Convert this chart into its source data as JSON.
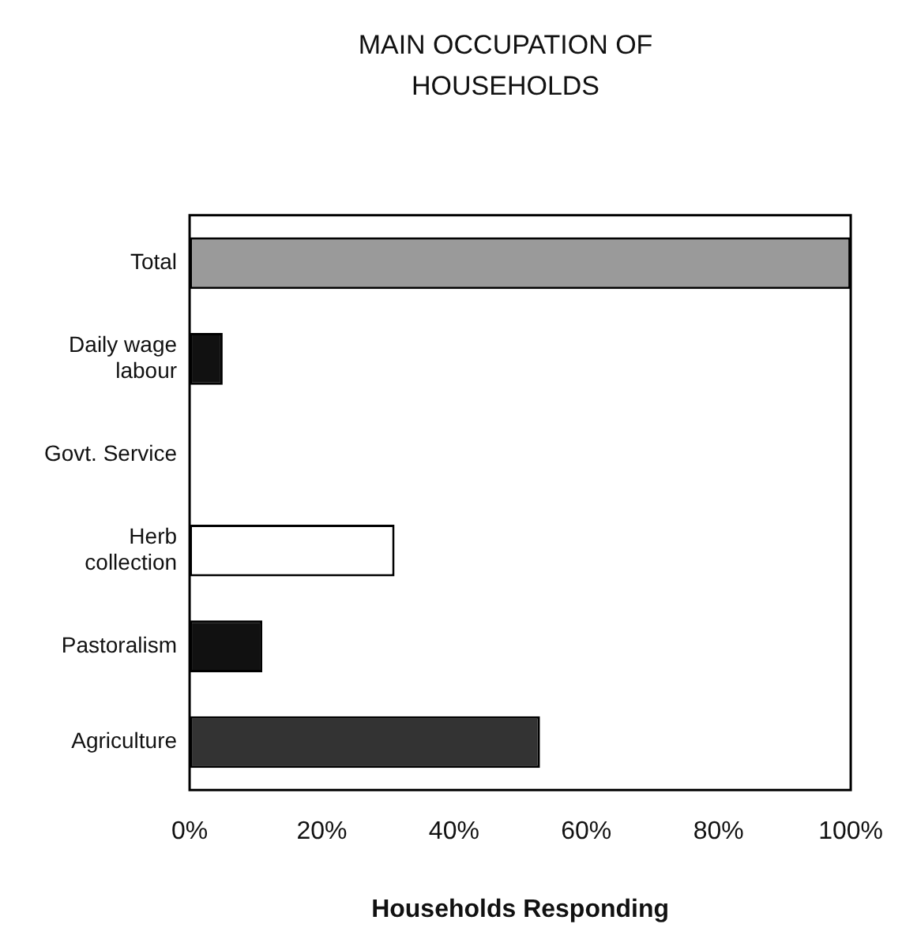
{
  "chart_data": {
    "type": "bar",
    "orientation": "horizontal",
    "title": "MAIN OCCUPATION OF HOUSEHOLDS",
    "xlabel": "Households Responding",
    "categories": [
      "Total",
      "Daily wage labour",
      "Govt. Service",
      "Herb collection",
      "Pastoralism",
      "Agriculture"
    ],
    "values": [
      100,
      5,
      0,
      31,
      11,
      53
    ],
    "colors": [
      "#9a9a9a",
      "#111111",
      "#111111",
      "#ffffff",
      "#111111",
      "#333333"
    ],
    "xlim": [
      0,
      100
    ],
    "xticks": [
      {
        "value": 0,
        "label": "0%"
      },
      {
        "value": 20,
        "label": "20%"
      },
      {
        "value": 40,
        "label": "40%"
      },
      {
        "value": 60,
        "label": "60%"
      },
      {
        "value": 80,
        "label": "80%"
      },
      {
        "value": 100,
        "label": "100%"
      }
    ],
    "grid": false,
    "legend": false
  }
}
